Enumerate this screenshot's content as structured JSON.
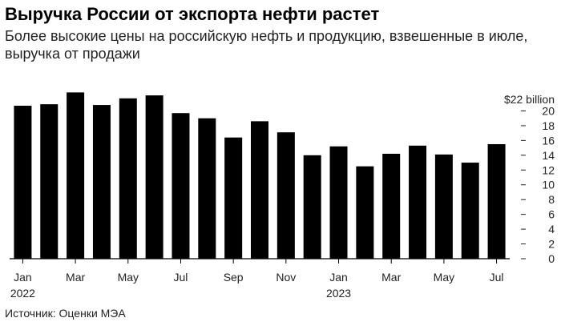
{
  "header": {
    "title": "Выручка России от экспорта нефти растет",
    "subtitle": "Более высокие цены на российскую нефть и продукцию, взвешенные в июле, выручка от продажи"
  },
  "footer": {
    "source": "Источник: Оценки МЭА"
  },
  "chart_data": {
    "type": "bar",
    "categories": [
      "Jan 2022",
      "Feb 2022",
      "Mar 2022",
      "Apr 2022",
      "May 2022",
      "Jun 2022",
      "Jul 2022",
      "Aug 2022",
      "Sep 2022",
      "Oct 2022",
      "Nov 2022",
      "Dec 2022",
      "Jan 2023",
      "Feb 2023",
      "Mar 2023",
      "Apr 2023",
      "May 2023",
      "Jun 2023",
      "Jul 2023"
    ],
    "values": [
      20.7,
      20.9,
      22.5,
      20.8,
      21.7,
      22.1,
      19.7,
      19.0,
      16.4,
      18.6,
      17.1,
      14.0,
      15.2,
      12.5,
      14.2,
      15.3,
      14.1,
      13.0,
      15.5
    ],
    "ylim": [
      0,
      22
    ],
    "y_ticks": [
      0,
      2,
      4,
      6,
      8,
      10,
      12,
      14,
      16,
      18,
      20
    ],
    "y_unit_label": "$22 billion",
    "x_tick_labels": [
      {
        "index": 0,
        "label": "Jan",
        "year": "2022"
      },
      {
        "index": 2,
        "label": "Mar"
      },
      {
        "index": 4,
        "label": "May"
      },
      {
        "index": 6,
        "label": "Jul"
      },
      {
        "index": 8,
        "label": "Sep"
      },
      {
        "index": 10,
        "label": "Nov"
      },
      {
        "index": 12,
        "label": "Jan",
        "year": "2023"
      },
      {
        "index": 14,
        "label": "Mar"
      },
      {
        "index": 16,
        "label": "May"
      },
      {
        "index": 18,
        "label": "Jul"
      }
    ],
    "bar_color": "#000000",
    "axis_right": true,
    "grid": false
  }
}
